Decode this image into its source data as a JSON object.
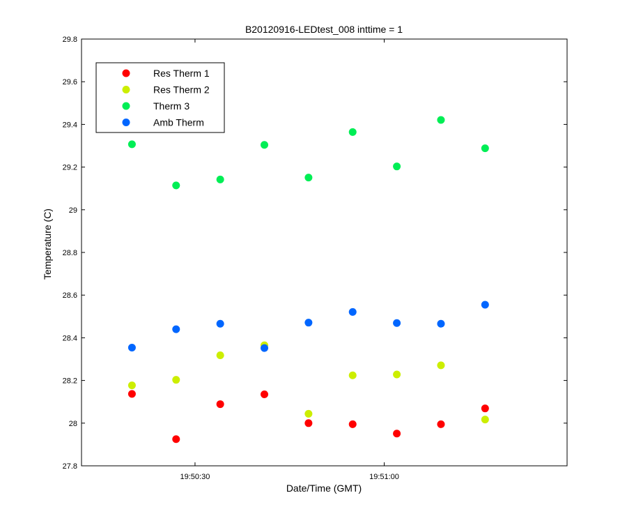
{
  "chart_data": {
    "type": "scatter",
    "title": "B20120916-LEDtest_008 inttime = 1",
    "xlabel": "Date/Time (GMT)",
    "ylabel": "Temperature (C)",
    "xlim": [
      "19:50:12",
      "19:51:29"
    ],
    "ylim": [
      27.8,
      29.8
    ],
    "x_tick_values": [
      "19:50:30",
      "19:51:00"
    ],
    "x_tick_labels": [
      "19:50:30",
      "19:51:00"
    ],
    "y_ticks": [
      27.8,
      28,
      28.2,
      28.4,
      28.6,
      28.8,
      29,
      29.2,
      29.4,
      29.6,
      29.8
    ],
    "y_tick_labels": [
      "27.8",
      "28",
      "28.2",
      "28.4",
      "28.6",
      "28.8",
      "29",
      "29.2",
      "29.4",
      "29.6",
      "29.8"
    ],
    "grid": false,
    "legend_position": "top-left",
    "x": [
      "19:50:20",
      "19:50:27",
      "19:50:34",
      "19:50:41",
      "19:50:48",
      "19:50:55",
      "19:51:02",
      "19:51:09",
      "19:51:16"
    ],
    "series": [
      {
        "name": "Res Therm 1",
        "color": "#ff0000",
        "values": [
          28.137,
          27.925,
          28.089,
          28.135,
          28.0,
          27.995,
          27.951,
          27.995,
          28.069
        ]
      },
      {
        "name": "Res Therm 2",
        "color": "#ccee00",
        "values": [
          28.177,
          28.203,
          28.318,
          28.365,
          28.044,
          28.224,
          28.228,
          28.271,
          28.017
        ]
      },
      {
        "name": "Therm 3",
        "color": "#00ee55",
        "values": [
          29.307,
          29.114,
          29.142,
          29.304,
          29.151,
          29.364,
          29.203,
          29.421,
          29.288
        ]
      },
      {
        "name": "Amb Therm",
        "color": "#0066ff",
        "values": [
          28.354,
          28.44,
          28.466,
          28.352,
          28.471,
          28.521,
          28.469,
          28.466,
          28.555
        ]
      }
    ]
  }
}
